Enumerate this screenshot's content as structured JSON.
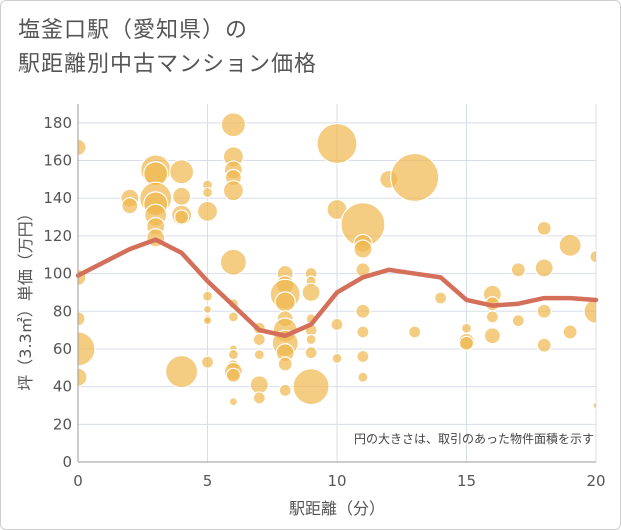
{
  "title_line1": "塩釜口駅（愛知県）の",
  "title_line2": "駅距離別中古マンション価格",
  "chart_data": {
    "type": "scatter",
    "xlabel": "駅距離（分）",
    "ylabel": "坪（3.3㎡）単価（万円）",
    "xlim": [
      0,
      20
    ],
    "ylim": [
      0,
      190
    ],
    "xticks": [
      0,
      5,
      10,
      15,
      20
    ],
    "yticks": [
      0,
      20,
      40,
      60,
      80,
      100,
      120,
      140,
      160,
      180
    ],
    "grid": true,
    "annotation": "円の大きさは、取引のあった物件面積を示す",
    "colors": {
      "bubble": "#f0b84e",
      "line": "#d4705a",
      "grid": "#d8dde8",
      "text": "#555555"
    },
    "points": [
      {
        "x": 0,
        "y": 167,
        "s": 8
      },
      {
        "x": 0,
        "y": 98,
        "s": 8
      },
      {
        "x": 0,
        "y": 76,
        "s": 7
      },
      {
        "x": 0,
        "y": 60,
        "s": 17
      },
      {
        "x": 0,
        "y": 45,
        "s": 9
      },
      {
        "x": 2,
        "y": 140,
        "s": 9
      },
      {
        "x": 2,
        "y": 136,
        "s": 8
      },
      {
        "x": 3,
        "y": 155,
        "s": 15
      },
      {
        "x": 3,
        "y": 153,
        "s": 12
      },
      {
        "x": 3,
        "y": 140,
        "s": 16
      },
      {
        "x": 3,
        "y": 137,
        "s": 12
      },
      {
        "x": 3,
        "y": 131,
        "s": 11
      },
      {
        "x": 3,
        "y": 125,
        "s": 9
      },
      {
        "x": 3,
        "y": 119,
        "s": 9
      },
      {
        "x": 4,
        "y": 154,
        "s": 12
      },
      {
        "x": 4,
        "y": 141,
        "s": 9
      },
      {
        "x": 4,
        "y": 131,
        "s": 10
      },
      {
        "x": 4,
        "y": 130,
        "s": 7
      },
      {
        "x": 4,
        "y": 48,
        "s": 16
      },
      {
        "x": 5,
        "y": 147,
        "s": 5
      },
      {
        "x": 5,
        "y": 143,
        "s": 5
      },
      {
        "x": 5,
        "y": 133,
        "s": 10
      },
      {
        "x": 5,
        "y": 88,
        "s": 5
      },
      {
        "x": 5,
        "y": 81,
        "s": 4
      },
      {
        "x": 5,
        "y": 76,
        "s": 4
      },
      {
        "x": 5,
        "y": 75,
        "s": 4
      },
      {
        "x": 5,
        "y": 53,
        "s": 6
      },
      {
        "x": 6,
        "y": 179,
        "s": 12
      },
      {
        "x": 6,
        "y": 162,
        "s": 10
      },
      {
        "x": 6,
        "y": 155,
        "s": 9
      },
      {
        "x": 6,
        "y": 151,
        "s": 8
      },
      {
        "x": 6,
        "y": 144,
        "s": 10
      },
      {
        "x": 6,
        "y": 106,
        "s": 13
      },
      {
        "x": 6,
        "y": 84,
        "s": 5
      },
      {
        "x": 6,
        "y": 77,
        "s": 5
      },
      {
        "x": 6,
        "y": 60,
        "s": 4
      },
      {
        "x": 6,
        "y": 57,
        "s": 5
      },
      {
        "x": 6,
        "y": 51,
        "s": 6
      },
      {
        "x": 6,
        "y": 48,
        "s": 9
      },
      {
        "x": 6,
        "y": 46,
        "s": 7
      },
      {
        "x": 6,
        "y": 32,
        "s": 4
      },
      {
        "x": 7,
        "y": 71,
        "s": 6
      },
      {
        "x": 7,
        "y": 65,
        "s": 6
      },
      {
        "x": 7,
        "y": 57,
        "s": 5
      },
      {
        "x": 7,
        "y": 41,
        "s": 9
      },
      {
        "x": 7,
        "y": 34,
        "s": 6
      },
      {
        "x": 8,
        "y": 100,
        "s": 8
      },
      {
        "x": 8,
        "y": 94,
        "s": 9
      },
      {
        "x": 8,
        "y": 89,
        "s": 15
      },
      {
        "x": 8,
        "y": 85,
        "s": 10
      },
      {
        "x": 8,
        "y": 76,
        "s": 8
      },
      {
        "x": 8,
        "y": 70,
        "s": 12
      },
      {
        "x": 8,
        "y": 63,
        "s": 13
      },
      {
        "x": 8,
        "y": 58,
        "s": 9
      },
      {
        "x": 8,
        "y": 52,
        "s": 7
      },
      {
        "x": 8,
        "y": 38,
        "s": 6
      },
      {
        "x": 9,
        "y": 100,
        "s": 6
      },
      {
        "x": 9,
        "y": 96,
        "s": 5
      },
      {
        "x": 9,
        "y": 90,
        "s": 9
      },
      {
        "x": 9,
        "y": 76,
        "s": 5
      },
      {
        "x": 9,
        "y": 70,
        "s": 6
      },
      {
        "x": 9,
        "y": 65,
        "s": 5
      },
      {
        "x": 9,
        "y": 58,
        "s": 6
      },
      {
        "x": 9,
        "y": 40,
        "s": 18
      },
      {
        "x": 10,
        "y": 169,
        "s": 20
      },
      {
        "x": 10,
        "y": 134,
        "s": 10
      },
      {
        "x": 10,
        "y": 73,
        "s": 6
      },
      {
        "x": 10,
        "y": 55,
        "s": 5
      },
      {
        "x": 11,
        "y": 126,
        "s": 22
      },
      {
        "x": 11,
        "y": 116,
        "s": 9
      },
      {
        "x": 11,
        "y": 113,
        "s": 9
      },
      {
        "x": 11,
        "y": 102,
        "s": 7
      },
      {
        "x": 11,
        "y": 80,
        "s": 7
      },
      {
        "x": 11,
        "y": 69,
        "s": 6
      },
      {
        "x": 11,
        "y": 56,
        "s": 6
      },
      {
        "x": 11,
        "y": 45,
        "s": 5
      },
      {
        "x": 12,
        "y": 150,
        "s": 9
      },
      {
        "x": 13,
        "y": 151,
        "s": 24
      },
      {
        "x": 13,
        "y": 69,
        "s": 6
      },
      {
        "x": 14,
        "y": 87,
        "s": 6
      },
      {
        "x": 15,
        "y": 71,
        "s": 5
      },
      {
        "x": 15,
        "y": 64,
        "s": 8
      },
      {
        "x": 15,
        "y": 63,
        "s": 7
      },
      {
        "x": 16,
        "y": 89,
        "s": 9
      },
      {
        "x": 16,
        "y": 84,
        "s": 7
      },
      {
        "x": 16,
        "y": 77,
        "s": 6
      },
      {
        "x": 16,
        "y": 67,
        "s": 8
      },
      {
        "x": 17,
        "y": 102,
        "s": 7
      },
      {
        "x": 17,
        "y": 75,
        "s": 6
      },
      {
        "x": 18,
        "y": 124,
        "s": 7
      },
      {
        "x": 18,
        "y": 103,
        "s": 9
      },
      {
        "x": 18,
        "y": 80,
        "s": 7
      },
      {
        "x": 18,
        "y": 62,
        "s": 7
      },
      {
        "x": 19,
        "y": 115,
        "s": 11
      },
      {
        "x": 19,
        "y": 69,
        "s": 7
      },
      {
        "x": 20,
        "y": 109,
        "s": 6
      },
      {
        "x": 20,
        "y": 80,
        "s": 12
      },
      {
        "x": 20,
        "y": 30,
        "s": 3
      }
    ],
    "trend": {
      "x": [
        0,
        1,
        2,
        3,
        4,
        5,
        6,
        7,
        8,
        9,
        10,
        11,
        12,
        13,
        14,
        15,
        16,
        17,
        18,
        19,
        20
      ],
      "y": [
        99,
        106,
        113,
        118,
        111,
        96,
        83,
        70,
        67,
        73,
        90,
        98,
        102,
        100,
        98,
        86,
        83,
        84,
        87,
        87,
        86
      ]
    }
  }
}
